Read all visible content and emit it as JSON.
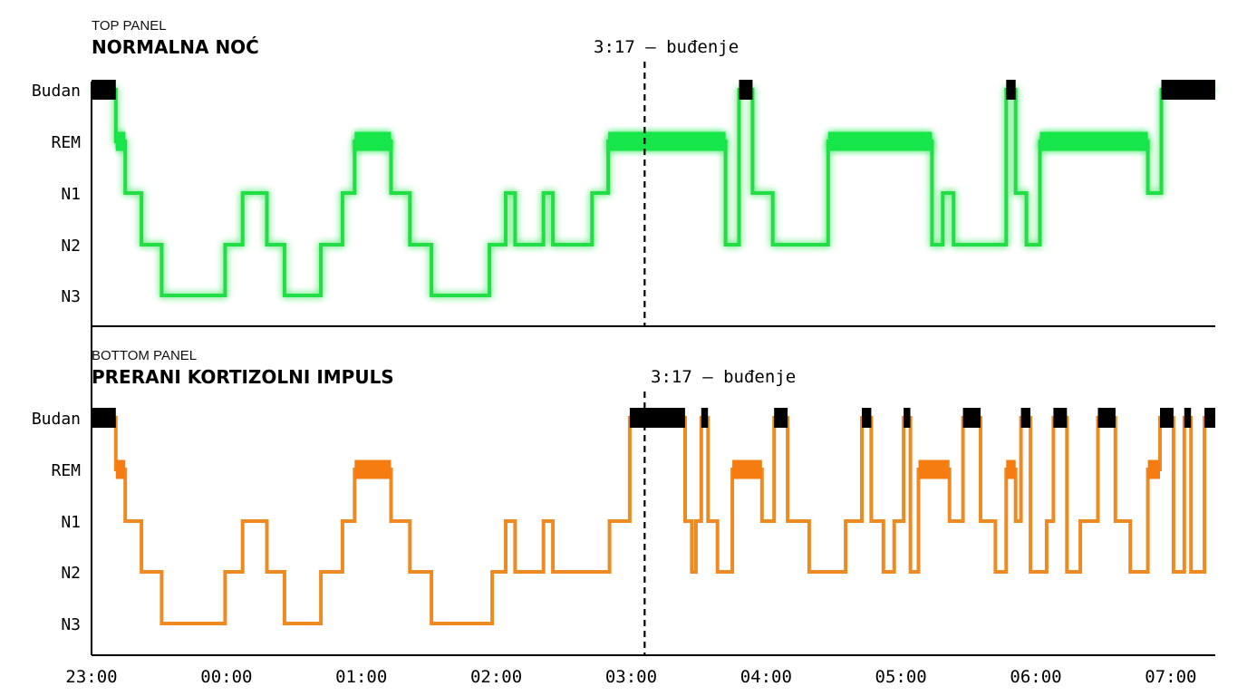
{
  "chart_data": {
    "type": "line",
    "x_unit": "hours since 23:00",
    "x_range": [
      0,
      8.33
    ],
    "x_ticks": [
      {
        "x": 0,
        "label": "23:00"
      },
      {
        "x": 1,
        "label": "00:00"
      },
      {
        "x": 2,
        "label": "01:00"
      },
      {
        "x": 3,
        "label": "02:00"
      },
      {
        "x": 4,
        "label": "03:00"
      },
      {
        "x": 5,
        "label": "04:00"
      },
      {
        "x": 6,
        "label": "05:00"
      },
      {
        "x": 7,
        "label": "06:00"
      },
      {
        "x": 8,
        "label": "07:00"
      }
    ],
    "stages": [
      "N3",
      "N2",
      "N1",
      "REM",
      "Budan"
    ],
    "stage_values": {
      "N3": 0,
      "N2": 1,
      "N1": 2,
      "REM": 3,
      "Budan": 4
    },
    "wake_marker": {
      "x": 4.1,
      "label": "3:17 — buđenje"
    },
    "panels": [
      {
        "kicker": "TOP PANEL",
        "title": "NORMALNA NOĆ",
        "color": "#22dd44",
        "glow": "#39ff6a",
        "rem_color": "#16e64a",
        "wake_color": "#000000",
        "series": [
          [
            0.0,
            4
          ],
          [
            0.18,
            3
          ],
          [
            0.25,
            2
          ],
          [
            0.37,
            1
          ],
          [
            0.52,
            0
          ],
          [
            0.99,
            1
          ],
          [
            1.12,
            2
          ],
          [
            1.3,
            1
          ],
          [
            1.43,
            0
          ],
          [
            1.7,
            1
          ],
          [
            1.86,
            2
          ],
          [
            1.95,
            3
          ],
          [
            2.22,
            2
          ],
          [
            2.36,
            1
          ],
          [
            2.52,
            0
          ],
          [
            2.95,
            1
          ],
          [
            3.07,
            2
          ],
          [
            3.14,
            1
          ],
          [
            3.35,
            2
          ],
          [
            3.42,
            1
          ],
          [
            3.71,
            2
          ],
          [
            3.83,
            3
          ],
          [
            4.7,
            1
          ],
          [
            4.8,
            4
          ],
          [
            4.9,
            2
          ],
          [
            5.05,
            1
          ],
          [
            5.46,
            3
          ],
          [
            6.23,
            1
          ],
          [
            6.31,
            2
          ],
          [
            6.39,
            1
          ],
          [
            6.78,
            4
          ],
          [
            6.85,
            2
          ],
          [
            6.93,
            1
          ],
          [
            7.03,
            3
          ],
          [
            7.83,
            2
          ],
          [
            7.93,
            4
          ],
          [
            8.33,
            4
          ]
        ]
      },
      {
        "kicker": "BOTTOM PANEL",
        "title": "PRERANI KORTIZOLNI IMPULS",
        "color": "#ee8a22",
        "glow": "#ee8a22",
        "rem_color": "#f47c10",
        "wake_color": "#000000",
        "series": [
          [
            0.0,
            4
          ],
          [
            0.18,
            3
          ],
          [
            0.25,
            2
          ],
          [
            0.37,
            1
          ],
          [
            0.52,
            0
          ],
          [
            0.99,
            1
          ],
          [
            1.12,
            2
          ],
          [
            1.3,
            1
          ],
          [
            1.43,
            0
          ],
          [
            1.7,
            1
          ],
          [
            1.86,
            2
          ],
          [
            1.95,
            3
          ],
          [
            2.22,
            2
          ],
          [
            2.36,
            1
          ],
          [
            2.52,
            0
          ],
          [
            2.97,
            1
          ],
          [
            3.07,
            2
          ],
          [
            3.14,
            1
          ],
          [
            3.35,
            2
          ],
          [
            3.42,
            1
          ],
          [
            3.84,
            2
          ],
          [
            3.99,
            4
          ],
          [
            4.4,
            2
          ],
          [
            4.45,
            1
          ],
          [
            4.48,
            2
          ],
          [
            4.52,
            4
          ],
          [
            4.57,
            2
          ],
          [
            4.64,
            1
          ],
          [
            4.75,
            3
          ],
          [
            4.97,
            2
          ],
          [
            5.06,
            4
          ],
          [
            5.16,
            2
          ],
          [
            5.32,
            1
          ],
          [
            5.54,
            1
          ],
          [
            5.59,
            2
          ],
          [
            5.71,
            4
          ],
          [
            5.78,
            2
          ],
          [
            5.87,
            1
          ],
          [
            5.95,
            2
          ],
          [
            6.02,
            4
          ],
          [
            6.07,
            1
          ],
          [
            6.13,
            3
          ],
          [
            6.36,
            2
          ],
          [
            6.46,
            4
          ],
          [
            6.59,
            2
          ],
          [
            6.7,
            1
          ],
          [
            6.78,
            3
          ],
          [
            6.85,
            2
          ],
          [
            6.89,
            4
          ],
          [
            6.96,
            1
          ],
          [
            7.08,
            2
          ],
          [
            7.13,
            4
          ],
          [
            7.23,
            1
          ],
          [
            7.25,
            1
          ],
          [
            7.33,
            2
          ],
          [
            7.46,
            4
          ],
          [
            7.59,
            2
          ],
          [
            7.7,
            1
          ],
          [
            7.8,
            1
          ],
          [
            7.83,
            3
          ],
          [
            7.92,
            4
          ],
          [
            8.02,
            1
          ],
          [
            8.1,
            4
          ],
          [
            8.15,
            1
          ],
          [
            8.25,
            4
          ],
          [
            8.33,
            4
          ]
        ]
      }
    ]
  }
}
